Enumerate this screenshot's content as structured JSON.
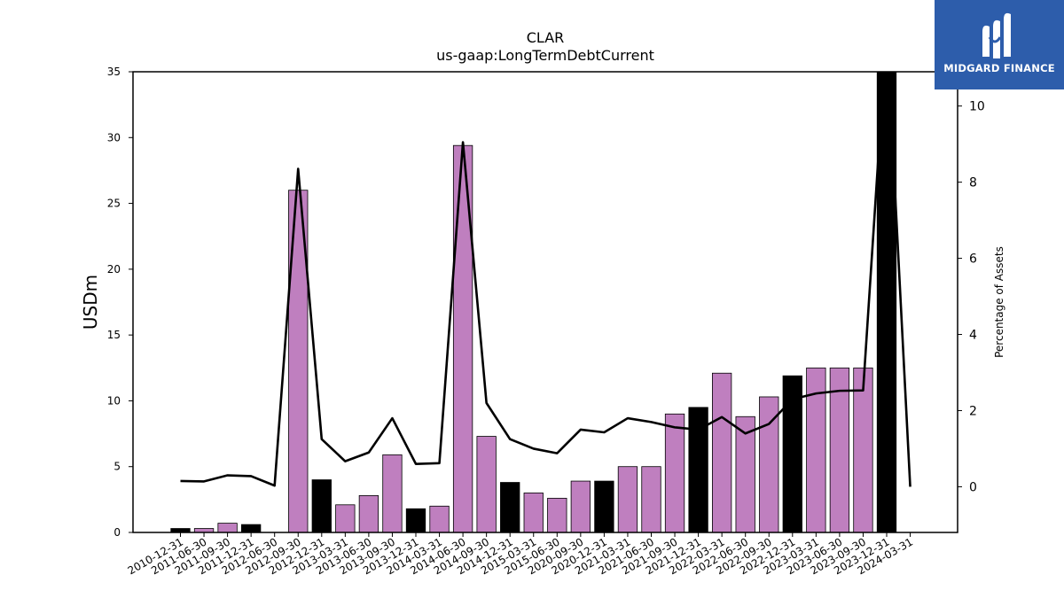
{
  "chart_data": {
    "type": "bar",
    "title": "CLAR",
    "subtitle": "us-gaap:LongTermDebtCurrent",
    "ylabel": "USDm",
    "y2label": "Percentage of Assets",
    "ylim": [
      0,
      35
    ],
    "y2lim": [
      -1.2,
      10.9
    ],
    "yticks": [
      0,
      5,
      10,
      15,
      20,
      25,
      30,
      35
    ],
    "y2ticks": [
      0,
      2,
      4,
      6,
      8,
      10
    ],
    "categories": [
      "2010-12-31",
      "2011-06-30",
      "2011-09-30",
      "2011-12-31",
      "2012-06-30",
      "2012-09-30",
      "2012-12-31",
      "2013-03-31",
      "2013-06-30",
      "2013-09-30",
      "2013-12-31",
      "2014-03-31",
      "2014-06-30",
      "2014-09-30",
      "2014-12-31",
      "2015-03-31",
      "2015-06-30",
      "2020-09-30",
      "2020-12-31",
      "2021-03-31",
      "2021-06-30",
      "2021-09-30",
      "2021-12-31",
      "2022-03-31",
      "2022-06-30",
      "2022-09-30",
      "2022-12-31",
      "2023-03-31",
      "2023-06-30",
      "2023-09-30",
      "2023-12-31",
      "2024-03-31"
    ],
    "values": [
      0.3,
      0.3,
      0.7,
      0.6,
      0,
      26.0,
      4.0,
      2.1,
      2.8,
      5.9,
      1.8,
      2.0,
      29.4,
      7.3,
      3.8,
      3.0,
      2.6,
      3.9,
      3.9,
      5.0,
      5.0,
      9.0,
      9.5,
      12.1,
      8.8,
      10.3,
      11.9,
      12.5,
      12.5,
      12.5,
      36.0,
      0
    ],
    "pct_assets": [
      0.15,
      0.14,
      0.3,
      0.28,
      0.03,
      8.35,
      1.25,
      0.67,
      0.9,
      1.8,
      0.6,
      0.62,
      9.05,
      2.2,
      1.25,
      1.0,
      0.88,
      1.5,
      1.43,
      1.8,
      1.7,
      1.56,
      1.5,
      1.83,
      1.4,
      1.65,
      2.3,
      2.45,
      2.52,
      2.53,
      12.0,
      0.0
    ],
    "bar_kinds": [
      "annual",
      "quarter",
      "quarter",
      "annual",
      "quarter",
      "quarter",
      "annual",
      "quarter",
      "quarter",
      "quarter",
      "annual",
      "quarter",
      "quarter",
      "quarter",
      "annual",
      "quarter",
      "quarter",
      "quarter",
      "annual",
      "quarter",
      "quarter",
      "quarter",
      "annual",
      "quarter",
      "quarter",
      "quarter",
      "annual",
      "quarter",
      "quarter",
      "quarter",
      "annual",
      "quarter"
    ],
    "colors": {
      "annual": "#000000",
      "quarter": "#bf7fbf",
      "line": "#000000",
      "bar_edge": "#000000"
    },
    "grid": false
  },
  "logo": {
    "text": "MIDGARD FINANCE",
    "background": "#2d5dab",
    "icon": "midgard-logo-icon"
  }
}
